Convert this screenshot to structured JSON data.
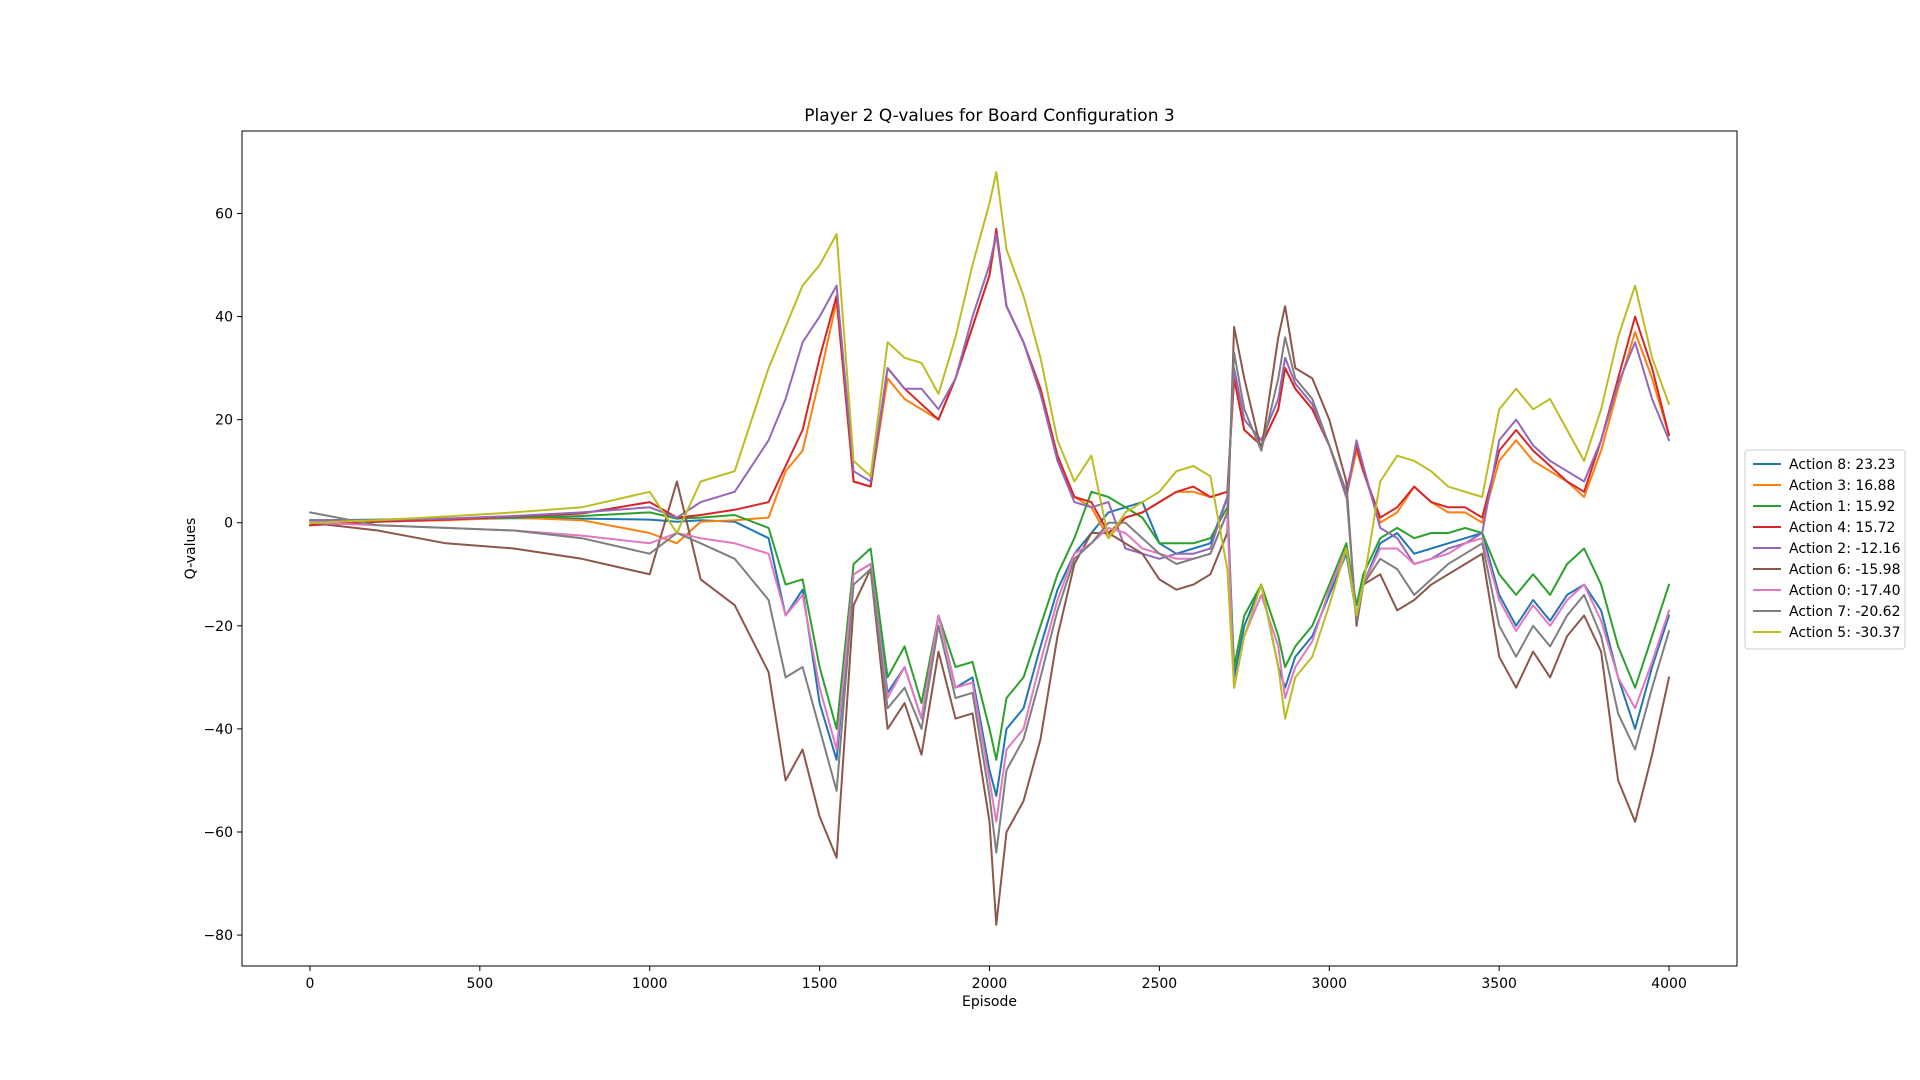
{
  "chart_data": {
    "type": "line",
    "title": "Player 2 Q-values for Board Configuration 3",
    "xlabel": "Episode",
    "ylabel": "Q-values",
    "xlim": [
      -200,
      4200
    ],
    "ylim": [
      -86,
      76
    ],
    "xticks": [
      0,
      500,
      1000,
      1500,
      2000,
      2500,
      3000,
      3500,
      4000
    ],
    "yticks": [
      -80,
      -60,
      -40,
      -20,
      0,
      20,
      40,
      60
    ],
    "grid": false,
    "legend_position": "right",
    "x": [
      0,
      200,
      400,
      600,
      800,
      1000,
      1080,
      1150,
      1250,
      1350,
      1400,
      1450,
      1500,
      1550,
      1600,
      1650,
      1700,
      1750,
      1800,
      1850,
      1900,
      1950,
      2000,
      2020,
      2050,
      2100,
      2150,
      2200,
      2250,
      2300,
      2350,
      2400,
      2450,
      2500,
      2550,
      2600,
      2650,
      2700,
      2720,
      2750,
      2800,
      2850,
      2870,
      2900,
      2950,
      3000,
      3050,
      3080,
      3100,
      3150,
      3200,
      3250,
      3300,
      3350,
      3400,
      3450,
      3500,
      3550,
      3600,
      3650,
      3700,
      3750,
      3800,
      3850,
      3900,
      3950,
      4000
    ],
    "series": [
      {
        "name": "Action 8: 23.23",
        "color": "#1f77b4",
        "values": [
          0.5,
          0.3,
          0.6,
          0.9,
          0.8,
          0.6,
          0.2,
          0.5,
          0.2,
          -3,
          -18,
          -13,
          -35,
          -46,
          -10,
          -8,
          -33,
          -28,
          -38,
          -18,
          -32,
          -30,
          -48,
          -53,
          -40,
          -36,
          -24,
          -13,
          -6,
          -2,
          2,
          3,
          4,
          -4,
          -6,
          -5,
          -4,
          5,
          -30,
          -20,
          -12,
          -28,
          -32,
          -26,
          -22,
          -14,
          -6,
          -18,
          -12,
          -4,
          -2,
          -6,
          -5,
          -4,
          -3,
          -2,
          -14,
          -20,
          -15,
          -19,
          -14,
          -12,
          -17,
          -30,
          -40,
          -28,
          -18
        ]
      },
      {
        "name": "Action 3: 16.88",
        "color": "#ff7f0e",
        "values": [
          -0.5,
          0.2,
          0.5,
          1,
          0.5,
          -2,
          -4,
          0.2,
          0.5,
          1,
          10,
          14,
          28,
          43,
          8,
          7,
          28,
          24,
          22,
          20,
          28,
          38,
          48,
          56,
          42,
          35,
          26,
          13,
          5,
          3,
          -3,
          1,
          2,
          4,
          6,
          6,
          5,
          6,
          28,
          18,
          15,
          22,
          30,
          26,
          22,
          15,
          5,
          14,
          10,
          0,
          2,
          7,
          4,
          2,
          2,
          0,
          12,
          16,
          12,
          10,
          8,
          5,
          14,
          26,
          37,
          28,
          17
        ]
      },
      {
        "name": "Action 1: 15.92",
        "color": "#2ca02c",
        "values": [
          0.5,
          0.6,
          0.8,
          1,
          1.3,
          2,
          0.8,
          1,
          1.5,
          -1,
          -12,
          -11,
          -28,
          -40,
          -8,
          -5,
          -30,
          -24,
          -35,
          -18,
          -28,
          -27,
          -40,
          -46,
          -34,
          -30,
          -20,
          -10,
          -3,
          6,
          5,
          3,
          1,
          -4,
          -4,
          -4,
          -3,
          3,
          -28,
          -18,
          -12,
          -22,
          -28,
          -24,
          -20,
          -12,
          -4,
          -16,
          -10,
          -3,
          -1,
          -3,
          -2,
          -2,
          -1,
          -2,
          -10,
          -14,
          -10,
          -14,
          -8,
          -5,
          -12,
          -24,
          -32,
          -22,
          -12
        ]
      },
      {
        "name": "Action 4: 15.72",
        "color": "#d62728",
        "values": [
          -0.5,
          0.2,
          0.6,
          1.2,
          1.8,
          4,
          1,
          1.5,
          2.5,
          4,
          11,
          18,
          32,
          44,
          8,
          7,
          30,
          26,
          23,
          20,
          28,
          38,
          48,
          57,
          42,
          35,
          26,
          13,
          5,
          4,
          -2,
          1,
          2,
          4,
          6,
          7,
          5,
          6,
          28,
          18,
          15,
          22,
          30,
          26,
          22,
          15,
          6,
          15,
          10,
          1,
          3,
          7,
          4,
          3,
          3,
          1,
          14,
          18,
          14,
          11,
          8,
          6,
          16,
          28,
          40,
          30,
          17
        ]
      },
      {
        "name": "Action 2: -12.16",
        "color": "#9467bd",
        "values": [
          0.5,
          0.5,
          0.8,
          1.3,
          2,
          3,
          1,
          4,
          6,
          16,
          24,
          35,
          40,
          46,
          10,
          8,
          30,
          26,
          26,
          22,
          28,
          40,
          50,
          56,
          42,
          35,
          25,
          12,
          4,
          3,
          4,
          -5,
          -6,
          -7,
          -6,
          -6,
          -5,
          5,
          30,
          20,
          16,
          24,
          32,
          27,
          23,
          15,
          5,
          16,
          11,
          -1,
          -3,
          -8,
          -7,
          -5,
          -4,
          -2,
          16,
          20,
          15,
          12,
          10,
          8,
          16,
          27,
          35,
          24,
          16
        ]
      },
      {
        "name": "Action 6: -15.98",
        "color": "#8c564b",
        "values": [
          0,
          -1.5,
          -4,
          -5,
          -7,
          -10,
          8,
          -11,
          -16,
          -29,
          -50,
          -44,
          -57,
          -65,
          -16,
          -9,
          -40,
          -35,
          -45,
          -25,
          -38,
          -37,
          -58,
          -78,
          -60,
          -54,
          -42,
          -22,
          -8,
          -2,
          -2,
          -4,
          -6,
          -11,
          -13,
          -12,
          -10,
          -2,
          38,
          28,
          14,
          36,
          42,
          30,
          28,
          20,
          8,
          -20,
          -12,
          -10,
          -17,
          -15,
          -12,
          -10,
          -8,
          -6,
          -26,
          -32,
          -25,
          -30,
          -22,
          -18,
          -25,
          -50,
          -58,
          -45,
          -30
        ]
      },
      {
        "name": "Action 0: -17.40",
        "color": "#e377c2",
        "values": [
          0,
          -0.5,
          -1,
          -1.5,
          -2.5,
          -4,
          -2,
          -3,
          -4,
          -6,
          -18,
          -14,
          -32,
          -44,
          -10,
          -8,
          -34,
          -28,
          -38,
          -18,
          -32,
          -31,
          -50,
          -58,
          -44,
          -40,
          -27,
          -15,
          -6,
          -4,
          -1,
          -2,
          -5,
          -6,
          -7,
          -7,
          -6,
          2,
          -32,
          -22,
          -14,
          -24,
          -34,
          -28,
          -23,
          -13,
          -5,
          -18,
          -12,
          -5,
          -5,
          -8,
          -7,
          -6,
          -4,
          -3,
          -15,
          -21,
          -16,
          -20,
          -15,
          -12,
          -19,
          -30,
          -36,
          -27,
          -17
        ]
      },
      {
        "name": "Action 7: -20.62",
        "color": "#7f7f7f",
        "values": [
          2,
          -0.5,
          -1,
          -1.5,
          -3,
          -6,
          -2,
          -4,
          -7,
          -15,
          -30,
          -28,
          -40,
          -52,
          -12,
          -9,
          -36,
          -32,
          -40,
          -20,
          -34,
          -33,
          -53,
          -64,
          -48,
          -42,
          -30,
          -17,
          -7,
          -4,
          0,
          0,
          -3,
          -6,
          -8,
          -7,
          -6,
          2,
          33,
          22,
          14,
          28,
          36,
          28,
          24,
          15,
          6,
          -19,
          -12,
          -7,
          -9,
          -14,
          -11,
          -8,
          -6,
          -4,
          -20,
          -26,
          -20,
          -24,
          -18,
          -14,
          -22,
          -37,
          -44,
          -32,
          -21
        ]
      },
      {
        "name": "Action 5: -30.37",
        "color": "#bcbd22",
        "values": [
          0,
          0.5,
          1.2,
          2,
          3,
          6,
          -2,
          8,
          10,
          30,
          38,
          46,
          50,
          56,
          12,
          9,
          35,
          32,
          31,
          25,
          36,
          50,
          62,
          68,
          53,
          44,
          32,
          16,
          8,
          13,
          -3,
          2,
          4,
          6,
          10,
          11,
          9,
          -9,
          -32,
          -22,
          -12,
          -28,
          -38,
          -30,
          -26,
          -16,
          -5,
          -18,
          -12,
          8,
          13,
          12,
          10,
          7,
          6,
          5,
          22,
          26,
          22,
          24,
          18,
          12,
          22,
          36,
          46,
          32,
          23
        ]
      }
    ]
  }
}
